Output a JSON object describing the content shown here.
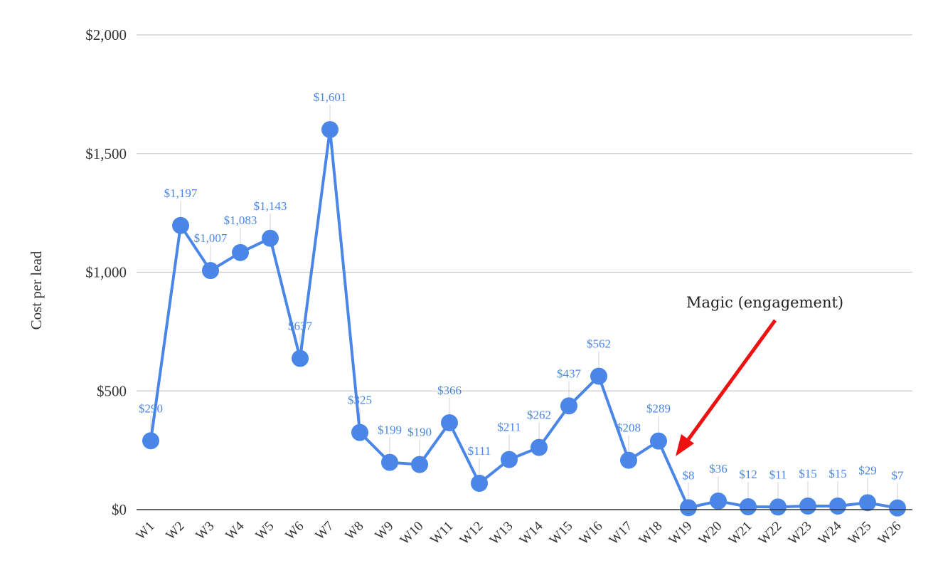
{
  "chart_data": {
    "type": "line",
    "title": "",
    "xlabel": "",
    "ylabel": "Cost per lead",
    "ylim": [
      0,
      2000
    ],
    "yticks": [
      {
        "value": 0,
        "label": "$0"
      },
      {
        "value": 500,
        "label": "$500"
      },
      {
        "value": 1000,
        "label": "$1,000"
      },
      {
        "value": 1500,
        "label": "$1,500"
      },
      {
        "value": 2000,
        "label": "$2,000"
      }
    ],
    "categories": [
      "W1",
      "W2",
      "W3",
      "W4",
      "W5",
      "W6",
      "W7",
      "W8",
      "W9",
      "W10",
      "W11",
      "W12",
      "W13",
      "W14",
      "W15",
      "W16",
      "W17",
      "W18",
      "W19",
      "W20",
      "W21",
      "W22",
      "W23",
      "W24",
      "W25",
      "W26"
    ],
    "series": [
      {
        "name": "",
        "color": "#4a86e8",
        "values": [
          290,
          1197,
          1007,
          1083,
          1143,
          637,
          1601,
          325,
          199,
          190,
          366,
          111,
          211,
          262,
          437,
          562,
          208,
          289,
          8,
          36,
          12,
          11,
          15,
          15,
          29,
          7
        ],
        "labels": [
          "$290",
          "$1,197",
          "$1,007",
          "$1,083",
          "$1,143",
          "$637",
          "$1,601",
          "$325",
          "$199",
          "$190",
          "$366",
          "$111",
          "$211",
          "$262",
          "$437",
          "$562",
          "$208",
          "$289",
          "$8",
          "$36",
          "$12",
          "$11",
          "$15",
          "$15",
          "$29",
          "$7"
        ]
      }
    ],
    "grid": true,
    "legend": "none",
    "annotation": {
      "text": "Magic (engagement)",
      "arrow_color": "#ee1111",
      "points_to_category": "W18"
    }
  }
}
